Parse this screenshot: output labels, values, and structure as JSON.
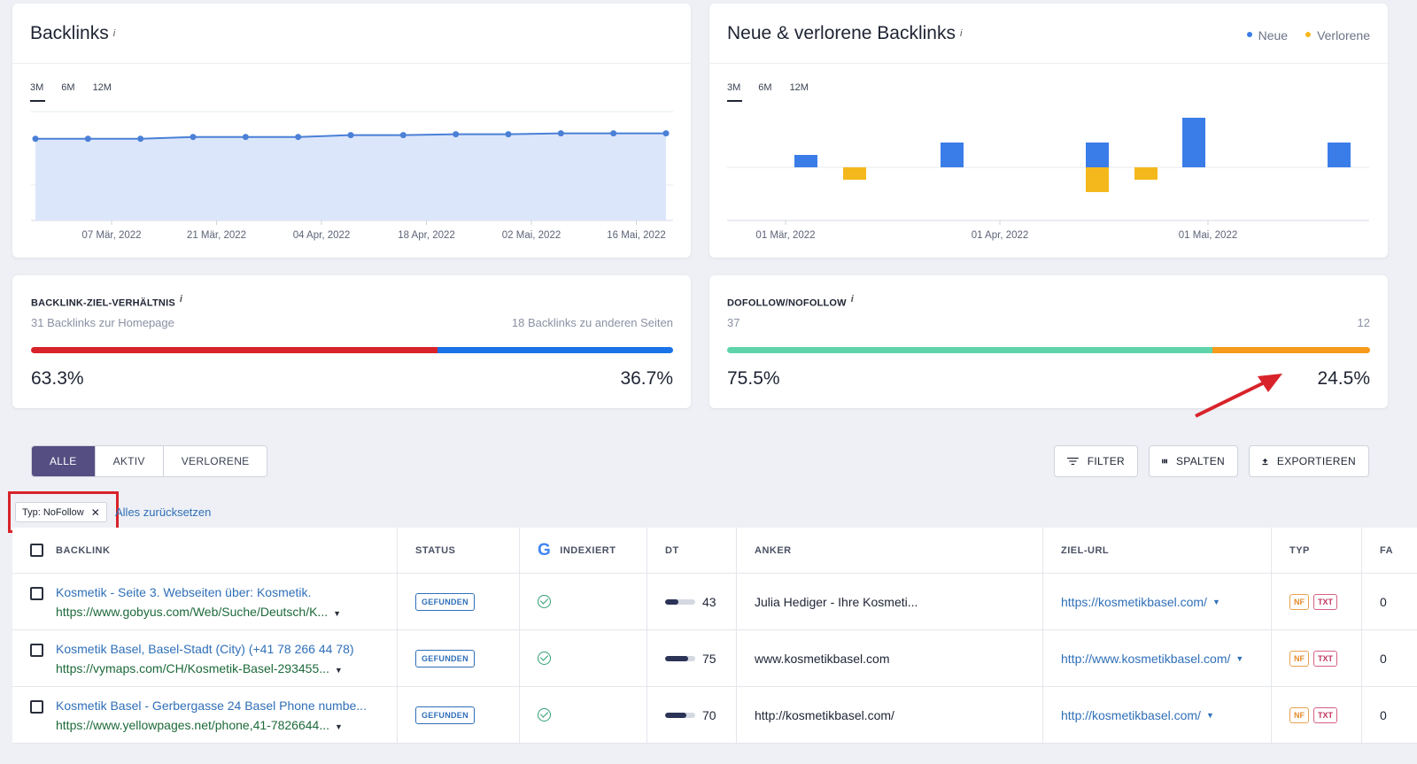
{
  "backlinks_card": {
    "title": "Backlinks",
    "info": "i",
    "periods": [
      "3M",
      "6M",
      "12M"
    ],
    "active_period": "3M"
  },
  "new_lost_card": {
    "title": "Neue & verlorene Backlinks",
    "info": "i",
    "legend": [
      {
        "label": "Neue",
        "color": "#3b7de8"
      },
      {
        "label": "Verlorene",
        "color": "#f5b81c"
      }
    ],
    "periods": [
      "3M",
      "6M",
      "12M"
    ],
    "active_period": "3M"
  },
  "chart_data": [
    {
      "type": "area",
      "x_tick_labels": [
        "07 Mär, 2022",
        "21 Mär, 2022",
        "04 Apr, 2022",
        "18 Apr, 2022",
        "02 Mai, 2022",
        "16 Mai, 2022"
      ],
      "values": [
        45,
        45,
        45,
        46,
        46,
        46,
        47,
        47,
        47.5,
        47.5,
        48,
        48,
        48
      ],
      "color": "#4a80d6",
      "fill": "#dce6fb",
      "grid": true
    },
    {
      "type": "bar",
      "x_tick_labels": [
        "01 Mär, 2022",
        "01 Apr, 2022",
        "01 Mai, 2022"
      ],
      "series": [
        {
          "name": "Neue",
          "color": "#3b7de8",
          "values": [
            1,
            2,
            2,
            4,
            2
          ]
        },
        {
          "name": "Verlorene",
          "color": "#f5b81c",
          "values": [
            -1,
            -2,
            -1
          ]
        }
      ],
      "grid": true
    }
  ],
  "target_ratio": {
    "label": "BACKLINK-ZIEL-VERHÄLTNIS",
    "info": "i",
    "left_text": "31 Backlinks zur Homepage",
    "right_text": "18 Backlinks zu anderen Seiten",
    "left_pct": "63.3%",
    "right_pct": "36.7%",
    "left_value": 63.3,
    "left_color": "#d8232a",
    "right_color": "#1a73e8"
  },
  "follow_ratio": {
    "label": "DOFOLLOW/NOFOLLOW",
    "info": "i",
    "left_text": "37",
    "right_text": "12",
    "left_pct": "75.5%",
    "right_pct": "24.5%",
    "left_value": 75.5,
    "left_color": "#5fd4ab",
    "right_color": "#f59a1b"
  },
  "toolbar": {
    "tabs": [
      "ALLE",
      "AKTIV",
      "VERLORENE"
    ],
    "active_tab": "ALLE",
    "filter_label": "FILTER",
    "columns_label": "SPALTEN",
    "export_label": "EXPORTIEREN"
  },
  "filter_chip": {
    "label": "Typ: NoFollow",
    "close": "✕",
    "reset": "Alles zurücksetzen"
  },
  "table": {
    "headers": {
      "backlink": "BACKLINK",
      "status": "STATUS",
      "indexed": "INDEXIERT",
      "dt": "DT",
      "anchor": "ANKER",
      "target": "ZIEL-URL",
      "type": "TYP",
      "extra": "FA"
    },
    "rows": [
      {
        "title": "Kosmetik - Seite 3. Webseiten über: Kosmetik.",
        "url": "https://www.gobyus.com/Web/Suche/Deutsch/K...",
        "status": "GEFUNDEN",
        "dt": "43",
        "dt_value": 43,
        "anchor": "Julia Hediger - Ihre Kosmeti...",
        "target": "https://kosmetikbasel.com/",
        "tag1": "NF",
        "tag2": "TXT",
        "extra": "0"
      },
      {
        "title": "Kosmetik Basel, Basel-Stadt (City) (+41 78 266 44 78)",
        "url": "https://vymaps.com/CH/Kosmetik-Basel-293455...",
        "status": "GEFUNDEN",
        "dt": "75",
        "dt_value": 75,
        "anchor": "www.kosmetikbasel.com",
        "target": "http://www.kosmetikbasel.com/",
        "tag1": "NF",
        "tag2": "TXT",
        "extra": "0"
      },
      {
        "title": "Kosmetik Basel - Gerbergasse 24 Basel Phone numbe...",
        "url": "https://www.yellowpages.net/phone,41-7826644...",
        "status": "GEFUNDEN",
        "dt": "70",
        "dt_value": 70,
        "anchor": "http://kosmetikbasel.com/",
        "target": "http://kosmetikbasel.com/",
        "tag1": "NF",
        "tag2": "TXT",
        "extra": "0"
      }
    ]
  }
}
